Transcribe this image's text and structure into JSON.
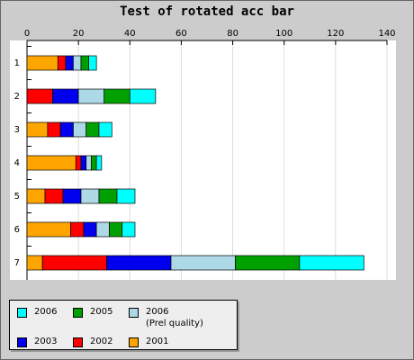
{
  "chart_data": {
    "type": "hbar-stacked",
    "title": "Test of rotated acc bar",
    "categories": [
      "1",
      "2",
      "3",
      "4",
      "5",
      "6",
      "7"
    ],
    "series": [
      {
        "name": "2001",
        "color": "#ffa500",
        "values": [
          12,
          0,
          8,
          19,
          7,
          17,
          6
        ]
      },
      {
        "name": "2002",
        "color": "#ff0000",
        "values": [
          3,
          10,
          5,
          2,
          7,
          5,
          25
        ]
      },
      {
        "name": "2003",
        "color": "#0000ee",
        "values": [
          3,
          10,
          5,
          2,
          7,
          5,
          25
        ]
      },
      {
        "name": "2006\n(Prel quality)",
        "color": "#add8e6",
        "values": [
          3,
          10,
          5,
          2,
          7,
          5,
          25
        ]
      },
      {
        "name": "2005",
        "color": "#00a000",
        "values": [
          3,
          10,
          5,
          2,
          7,
          5,
          25
        ]
      },
      {
        "name": "2006",
        "color": "#00ffff",
        "values": [
          3,
          10,
          5,
          2,
          7,
          5,
          25
        ]
      }
    ],
    "xlim": [
      0,
      140
    ],
    "xticks": [
      0,
      20,
      40,
      60,
      80,
      100,
      120,
      140
    ],
    "grid": true
  }
}
